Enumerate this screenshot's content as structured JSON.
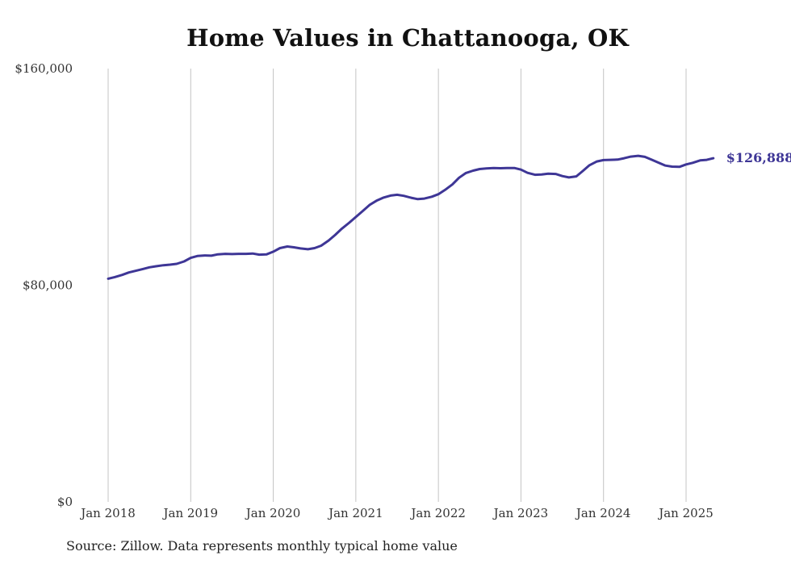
{
  "title": "Home Values in Chattanooga, OK",
  "source": "Source: Zillow. Data represents monthly typical home value",
  "colors": {
    "line": "#3e3696",
    "grid": "#c4c4c4",
    "text": "#333333"
  },
  "chart_data": {
    "type": "line",
    "title": "Home Values in Chattanooga, OK",
    "xlabel": "",
    "ylabel": "",
    "x_range": [
      2018.0,
      2025.25
    ],
    "ylim": [
      0,
      160000
    ],
    "y_ticks": [
      {
        "value": 0,
        "label": "$0"
      },
      {
        "value": 80000,
        "label": "$80,000"
      },
      {
        "value": 160000,
        "label": "$160,000"
      }
    ],
    "x_ticks": [
      {
        "value": 2018,
        "label": "Jan 2018"
      },
      {
        "value": 2019,
        "label": "Jan 2019"
      },
      {
        "value": 2020,
        "label": "Jan 2020"
      },
      {
        "value": 2021,
        "label": "Jan 2021"
      },
      {
        "value": 2022,
        "label": "Jan 2022"
      },
      {
        "value": 2023,
        "label": "Jan 2023"
      },
      {
        "value": 2024,
        "label": "Jan 2024"
      },
      {
        "value": 2025,
        "label": "Jan 2025"
      }
    ],
    "grid": "vertical",
    "end_label": "$126,888",
    "series": [
      {
        "points": [
          [
            2018.0,
            82400
          ],
          [
            2018.08,
            83000
          ],
          [
            2018.17,
            83800
          ],
          [
            2018.25,
            84700
          ],
          [
            2018.33,
            85300
          ],
          [
            2018.42,
            86000
          ],
          [
            2018.5,
            86600
          ],
          [
            2018.58,
            87000
          ],
          [
            2018.67,
            87400
          ],
          [
            2018.75,
            87600
          ],
          [
            2018.83,
            87900
          ],
          [
            2018.92,
            88800
          ],
          [
            2019.0,
            90100
          ],
          [
            2019.08,
            90800
          ],
          [
            2019.17,
            91000
          ],
          [
            2019.25,
            90900
          ],
          [
            2019.33,
            91400
          ],
          [
            2019.42,
            91600
          ],
          [
            2019.5,
            91500
          ],
          [
            2019.58,
            91600
          ],
          [
            2019.67,
            91600
          ],
          [
            2019.75,
            91700
          ],
          [
            2019.83,
            91300
          ],
          [
            2019.92,
            91400
          ],
          [
            2020.0,
            92400
          ],
          [
            2020.08,
            93700
          ],
          [
            2020.17,
            94300
          ],
          [
            2020.25,
            94000
          ],
          [
            2020.33,
            93600
          ],
          [
            2020.42,
            93300
          ],
          [
            2020.5,
            93700
          ],
          [
            2020.58,
            94600
          ],
          [
            2020.67,
            96500
          ],
          [
            2020.75,
            98600
          ],
          [
            2020.83,
            100900
          ],
          [
            2020.92,
            103100
          ],
          [
            2021.0,
            105200
          ],
          [
            2021.08,
            107300
          ],
          [
            2021.17,
            109700
          ],
          [
            2021.25,
            111200
          ],
          [
            2021.33,
            112300
          ],
          [
            2021.42,
            113100
          ],
          [
            2021.5,
            113400
          ],
          [
            2021.58,
            113000
          ],
          [
            2021.67,
            112300
          ],
          [
            2021.75,
            111800
          ],
          [
            2021.83,
            112000
          ],
          [
            2021.92,
            112700
          ],
          [
            2022.0,
            113600
          ],
          [
            2022.08,
            115200
          ],
          [
            2022.17,
            117200
          ],
          [
            2022.25,
            119700
          ],
          [
            2022.33,
            121400
          ],
          [
            2022.42,
            122300
          ],
          [
            2022.5,
            122900
          ],
          [
            2022.58,
            123100
          ],
          [
            2022.67,
            123300
          ],
          [
            2022.75,
            123200
          ],
          [
            2022.83,
            123300
          ],
          [
            2022.92,
            123300
          ],
          [
            2023.0,
            122700
          ],
          [
            2023.08,
            121500
          ],
          [
            2023.17,
            120800
          ],
          [
            2023.25,
            120900
          ],
          [
            2023.33,
            121200
          ],
          [
            2023.42,
            121100
          ],
          [
            2023.5,
            120300
          ],
          [
            2023.58,
            119800
          ],
          [
            2023.67,
            120200
          ],
          [
            2023.75,
            122200
          ],
          [
            2023.83,
            124300
          ],
          [
            2023.92,
            125700
          ],
          [
            2024.0,
            126200
          ],
          [
            2024.08,
            126300
          ],
          [
            2024.17,
            126400
          ],
          [
            2024.25,
            126900
          ],
          [
            2024.33,
            127500
          ],
          [
            2024.42,
            127800
          ],
          [
            2024.5,
            127400
          ],
          [
            2024.58,
            126400
          ],
          [
            2024.67,
            125200
          ],
          [
            2024.75,
            124200
          ],
          [
            2024.83,
            123800
          ],
          [
            2024.92,
            123700
          ],
          [
            2025.0,
            124600
          ],
          [
            2025.08,
            125200
          ],
          [
            2025.17,
            126100
          ],
          [
            2025.25,
            126300
          ],
          [
            2025.33,
            126888
          ]
        ]
      }
    ]
  }
}
